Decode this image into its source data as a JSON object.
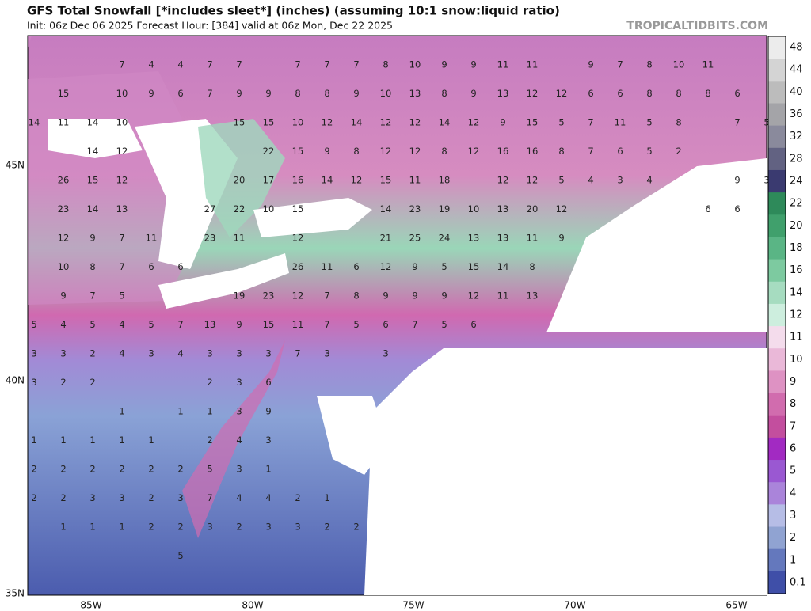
{
  "header": {
    "title": "GFS Total Snowfall [*includes sleet*] (inches) (assuming 10:1 snow:liquid ratio)",
    "subtitle": "Init: 06z Dec 06 2025   Forecast Hour: [384]   valid at 06z Mon, Dec 22 2025",
    "credit": "TROPICALTIDBITS.COM"
  },
  "map": {
    "lat_labels": [
      "45N",
      "40N",
      "35N"
    ],
    "lon_labels": [
      "85W",
      "80W",
      "75W",
      "70W",
      "65W"
    ],
    "values": [
      [
        null,
        null,
        null,
        7,
        4,
        4,
        7,
        7,
        null,
        7,
        7,
        7,
        8,
        10,
        9,
        9,
        11,
        11,
        null,
        9,
        7,
        8,
        10,
        11,
        null,
        null
      ],
      [
        null,
        15,
        null,
        10,
        9,
        6,
        7,
        9,
        9,
        8,
        8,
        9,
        10,
        13,
        8,
        9,
        13,
        12,
        12,
        6,
        6,
        8,
        8,
        8,
        6,
        null
      ],
      [
        14,
        11,
        14,
        10,
        null,
        null,
        null,
        15,
        15,
        10,
        12,
        14,
        12,
        12,
        14,
        12,
        9,
        15,
        5,
        7,
        11,
        5,
        8,
        null,
        7,
        5
      ],
      [
        null,
        null,
        14,
        12,
        null,
        null,
        null,
        null,
        22,
        15,
        9,
        8,
        12,
        12,
        8,
        12,
        16,
        16,
        8,
        7,
        6,
        5,
        2,
        null,
        null,
        null
      ],
      [
        null,
        26,
        15,
        12,
        null,
        null,
        null,
        20,
        17,
        16,
        14,
        12,
        15,
        11,
        18,
        null,
        12,
        12,
        5,
        4,
        3,
        4,
        null,
        null,
        9,
        3
      ],
      [
        null,
        23,
        14,
        13,
        null,
        null,
        27,
        22,
        10,
        15,
        null,
        null,
        14,
        23,
        19,
        10,
        13,
        20,
        12,
        null,
        null,
        null,
        null,
        6,
        6,
        null
      ],
      [
        null,
        12,
        9,
        7,
        11,
        null,
        23,
        11,
        null,
        12,
        null,
        null,
        21,
        25,
        24,
        13,
        13,
        11,
        9,
        null,
        null,
        null,
        null,
        null,
        null,
        null
      ],
      [
        null,
        10,
        8,
        7,
        6,
        6,
        null,
        null,
        null,
        26,
        11,
        6,
        12,
        9,
        5,
        15,
        14,
        8,
        null,
        null,
        null,
        null,
        null,
        null,
        null,
        null
      ],
      [
        null,
        9,
        7,
        5,
        null,
        null,
        null,
        19,
        23,
        12,
        7,
        8,
        9,
        9,
        9,
        12,
        11,
        13,
        null,
        null,
        null,
        null,
        null,
        null,
        null,
        null
      ],
      [
        5,
        4,
        5,
        4,
        5,
        7,
        13,
        9,
        15,
        11,
        7,
        5,
        6,
        7,
        5,
        6,
        null,
        null,
        null,
        null,
        null,
        null,
        null,
        null,
        null,
        null
      ],
      [
        3,
        3,
        2,
        4,
        3,
        4,
        3,
        3,
        3,
        7,
        3,
        null,
        3,
        null,
        null,
        null,
        null,
        null,
        null,
        null,
        null,
        null,
        null,
        null,
        null,
        null
      ],
      [
        3,
        2,
        2,
        null,
        null,
        null,
        2,
        3,
        6,
        null,
        null,
        null,
        null,
        null,
        null,
        null,
        null,
        null,
        null,
        null,
        null,
        null,
        null,
        null,
        null,
        null
      ],
      [
        null,
        null,
        null,
        1,
        null,
        1,
        1,
        3,
        9,
        null,
        null,
        null,
        null,
        null,
        null,
        null,
        null,
        null,
        null,
        null,
        null,
        null,
        null,
        null,
        null,
        null
      ],
      [
        1,
        1,
        1,
        1,
        1,
        null,
        2,
        4,
        3,
        null,
        null,
        null,
        null,
        null,
        null,
        null,
        null,
        null,
        null,
        null,
        null,
        null,
        null,
        null,
        null,
        null
      ],
      [
        2,
        2,
        2,
        2,
        2,
        2,
        5,
        3,
        1,
        null,
        null,
        null,
        null,
        null,
        null,
        null,
        null,
        null,
        null,
        null,
        null,
        null,
        null,
        null,
        null,
        null
      ],
      [
        2,
        2,
        3,
        3,
        2,
        3,
        7,
        4,
        4,
        2,
        1,
        null,
        null,
        null,
        null,
        null,
        null,
        null,
        null,
        null,
        null,
        null,
        null,
        null,
        null,
        null
      ],
      [
        null,
        1,
        1,
        1,
        2,
        2,
        3,
        2,
        3,
        3,
        2,
        2,
        null,
        null,
        null,
        null,
        null,
        null,
        null,
        null,
        null,
        null,
        null,
        null,
        null,
        null
      ],
      [
        null,
        null,
        null,
        null,
        null,
        5,
        null,
        null,
        null,
        null,
        null,
        null,
        null,
        null,
        null,
        null,
        null,
        null,
        null,
        null,
        null,
        null,
        null,
        null,
        null,
        null
      ]
    ]
  },
  "colorbar": {
    "levels": [
      48,
      44,
      40,
      36,
      32,
      28,
      24,
      22,
      20,
      18,
      16,
      14,
      12,
      11,
      10,
      9,
      8,
      7,
      6,
      5,
      4,
      3,
      2,
      1,
      0.1
    ],
    "colors": [
      "#ececec",
      "#d4d4d4",
      "#bcbcbc",
      "#a4a4a8",
      "#8a8a9c",
      "#626282",
      "#3a3a70",
      "#2e8a5a",
      "#40a06c",
      "#5ab585",
      "#7dcaa0",
      "#a6dcc0",
      "#cdeede",
      "#f4dcec",
      "#eab8d8",
      "#de92c3",
      "#d16cae",
      "#c34e9e",
      "#a22ac2",
      "#9a58d2",
      "#aa84da",
      "#b6bde6",
      "#90a3d2",
      "#6478bd",
      "#3f4fa8"
    ]
  }
}
